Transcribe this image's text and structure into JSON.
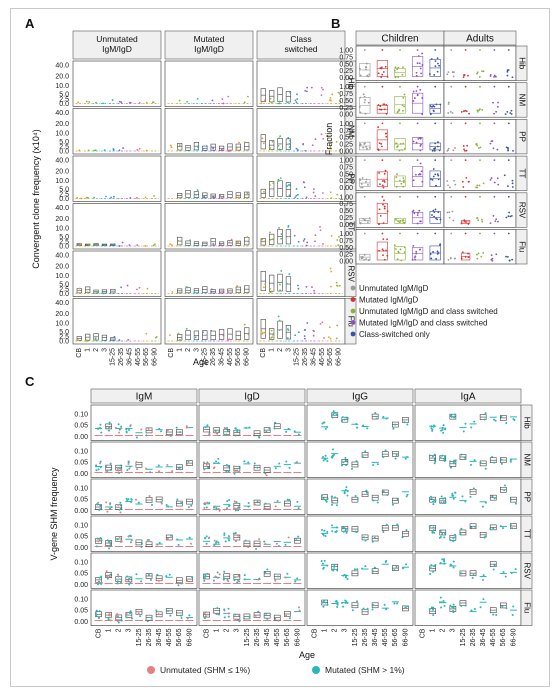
{
  "page": {
    "panel_letters": [
      "A",
      "B",
      "C"
    ]
  },
  "colors": {
    "unmutated": "#e58080",
    "mutated": "#2bb7b7",
    "cls_unmut": "#9a9a9a",
    "cls_mut": "#d83030",
    "cls_unmut_sw": "#8db23c",
    "cls_mut_sw": "#8a52c2",
    "cls_sw": "#3c4fa0",
    "a_dots": [
      "#e0a22b",
      "#9ab43a",
      "#5ab86e",
      "#2bb7b7",
      "#3f8fd0",
      "#7b68d6",
      "#c45bc8",
      "#e070a8"
    ],
    "strip_fill": "#f0f0f0",
    "strip_border": "#555555",
    "grid": "#e6e6e6",
    "box": "#444444"
  },
  "chart_data": [
    {
      "panel": "A",
      "type": "scatter",
      "columns": [
        "Unmutated\nIgM/IgD",
        "Mutated\nIgM/IgD",
        "Class\nswitched"
      ],
      "rows": [
        "Hib",
        "NM",
        "PP",
        "TT",
        "RSV",
        "Flu"
      ],
      "y_ticks": [
        "0.0",
        "2.5",
        "5.0",
        "10.0",
        "20.0",
        "40.0"
      ],
      "ylabel": "Convergent clone frequency (x10⁴)",
      "xlabel": "Age",
      "x_ticks": [
        "CB",
        "1",
        "2",
        "3",
        "15-25",
        "26-35",
        "36-45",
        "46-55",
        "56-65",
        "66-90"
      ],
      "x_tick_labels": [
        "CB",
        "1",
        "2",
        "3",
        "15-25",
        "26-35",
        "36-45",
        "46-55",
        "56-65",
        "66-90"
      ]
    },
    {
      "panel": "B",
      "type": "scatter",
      "columns": [
        "Children",
        "Adults"
      ],
      "rows": [
        "Hib",
        "NM",
        "PP",
        "TT",
        "RSV",
        "Flu"
      ],
      "y_ticks": [
        "0.00",
        "0.25",
        "0.50",
        "0.75",
        "1.00"
      ],
      "ylabel": "Fraction",
      "legend": [
        {
          "label": "Unmutated IgM/IgD",
          "color_key": "cls_unmut"
        },
        {
          "label": "Mutated IgM/IgD",
          "color_key": "cls_mut"
        },
        {
          "label": "Unmutated IgM/IgD and class switched",
          "color_key": "cls_unmut_sw"
        },
        {
          "label": "Mutated IgM/IgD and class switched",
          "color_key": "cls_mut_sw"
        },
        {
          "label": "Class-switched only",
          "color_key": "cls_sw"
        }
      ]
    },
    {
      "panel": "C",
      "type": "scatter",
      "columns": [
        "IgM",
        "IgD",
        "IgG",
        "IgA"
      ],
      "rows": [
        "Hib",
        "NM",
        "PP",
        "TT",
        "RSV",
        "Flu"
      ],
      "y_ticks": [
        "0.00",
        "0.05",
        "0.10"
      ],
      "ylabel": "V-gene SHM frequency",
      "xlabel": "Age",
      "x_ticks": [
        "CB",
        "1",
        "2",
        "3",
        "15-25",
        "26-35",
        "36-45",
        "46-55",
        "56-65",
        "66-90"
      ],
      "x_tick_labels": [
        "CB",
        "1",
        "2",
        "3",
        "15-25",
        "26-35",
        "36-45",
        "46-55",
        "56-65",
        "66-90"
      ],
      "legend": [
        {
          "label": "Unmutated (SHM ≤ 1%)",
          "color_key": "unmutated"
        },
        {
          "label": "Mutated (SHM > 1%)",
          "color_key": "mutated"
        }
      ]
    }
  ]
}
